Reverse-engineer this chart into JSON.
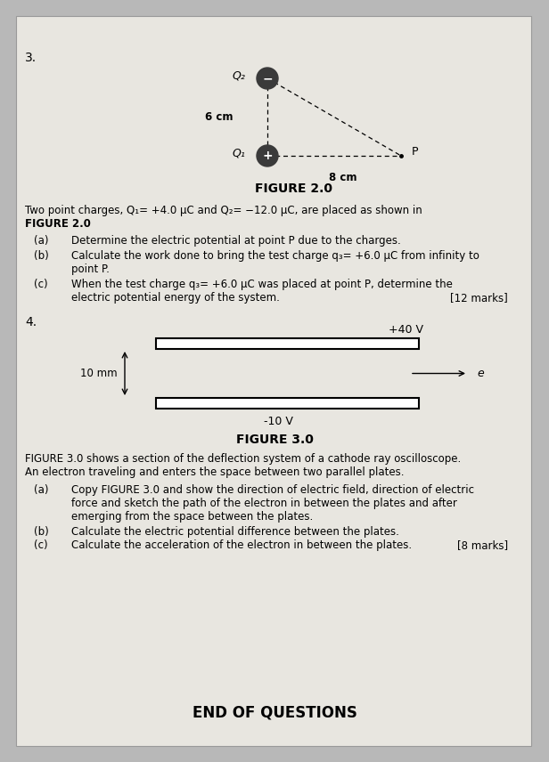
{
  "fig2_title": "FIGURE 2.0",
  "fig3_title": "FIGURE 3.0",
  "q2_label": "Q₂",
  "q1_label": "Q₁",
  "p_label": "P",
  "six_cm": "6 cm",
  "eight_cm": "8 cm",
  "plus40": "+40 V",
  "minus10": "-10 V",
  "ten_mm": "10 mm",
  "e_label": "e",
  "q3_num": "3.",
  "q4_num": "4.",
  "intro_line1": "Two point charges, Q₁= +4.0 μC and Q₂= −12.0 μC, are placed as shown in",
  "intro_line2": "FIGURE 2.0",
  "sub_a3": "Determine the electric potential at point P due to the charges.",
  "sub_b3a": "Calculate the work done to bring the test charge q₃= +6.0 μC from infinity to",
  "sub_b3b": "point P.",
  "sub_c3a": "When the test charge q₃= +6.0 μC was placed at point P, determine the",
  "sub_c3b": "electric potential energy of the system.",
  "marks3": "[12 marks]",
  "fig3_desc1": "FIGURE 3.0 shows a section of the deflection system of a cathode ray oscilloscope.",
  "fig3_desc2": "An electron traveling and enters the space between two parallel plates.",
  "sub_a4a": "Copy FIGURE 3.0 and show the direction of electric field, direction of electric",
  "sub_a4b": "force and sketch the path of the electron in between the plates and after",
  "sub_a4c": "emerging from the space between the plates.",
  "sub_b4": "Calculate the electric potential difference between the plates.",
  "sub_c4": "Calculate the acceleration of the electron in between the plates.",
  "marks4": "[8 marks]",
  "end_text": "END OF QUESTIONS",
  "page_color": "#e8e6e0",
  "outer_color": "#b8b8b8"
}
